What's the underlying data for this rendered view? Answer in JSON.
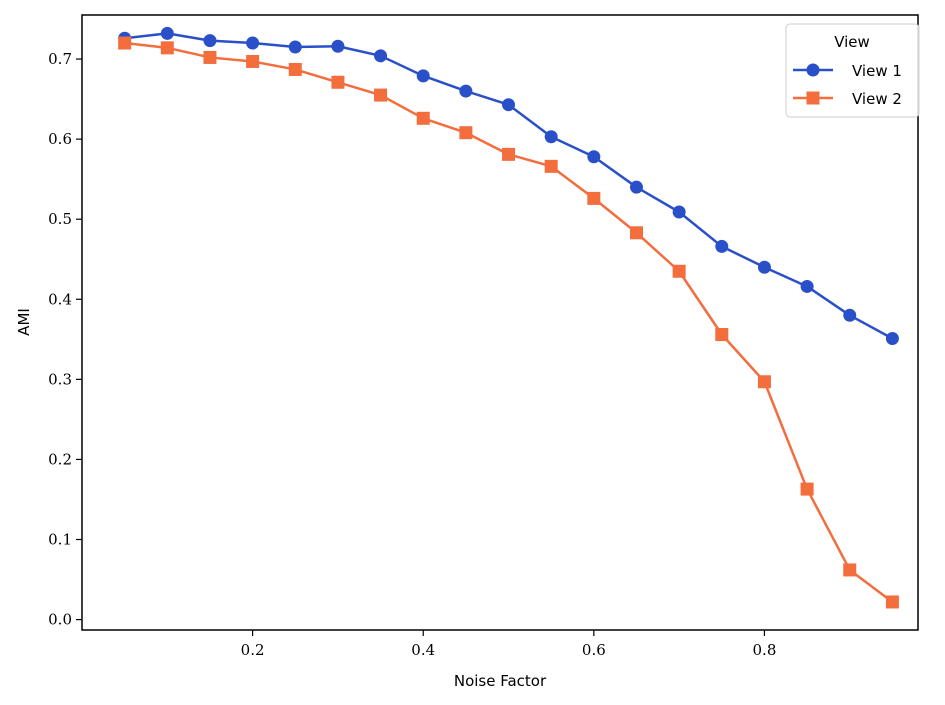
{
  "chart_data": {
    "type": "line",
    "xlabel": "Noise Factor",
    "ylabel": "AMI",
    "xlim": [
      0.0,
      0.98
    ],
    "ylim": [
      -0.013,
      0.755
    ],
    "x_ticks": [
      "0.2",
      "0.4",
      "0.6",
      "0.8"
    ],
    "y_ticks": [
      "0.0",
      "0.1",
      "0.2",
      "0.3",
      "0.4",
      "0.5",
      "0.6",
      "0.7"
    ],
    "legend": {
      "title": "View",
      "position": "top-right"
    },
    "x": [
      0.05,
      0.1,
      0.15,
      0.2,
      0.25,
      0.3,
      0.35,
      0.4,
      0.45,
      0.5,
      0.55,
      0.6,
      0.65,
      0.7,
      0.75,
      0.8,
      0.85,
      0.9,
      0.95
    ],
    "series": [
      {
        "name": "View 1",
        "marker": "circle",
        "color": "#2a50c9",
        "values": [
          0.726,
          0.732,
          0.723,
          0.72,
          0.715,
          0.716,
          0.704,
          0.679,
          0.66,
          0.643,
          0.603,
          0.578,
          0.54,
          0.509,
          0.466,
          0.44,
          0.416,
          0.38,
          0.351
        ]
      },
      {
        "name": "View 2",
        "marker": "square",
        "color": "#f36d3d",
        "values": [
          0.72,
          0.714,
          0.702,
          0.697,
          0.687,
          0.671,
          0.655,
          0.626,
          0.608,
          0.581,
          0.566,
          0.526,
          0.483,
          0.435,
          0.356,
          0.297,
          0.163,
          0.062,
          0.022
        ]
      }
    ]
  }
}
